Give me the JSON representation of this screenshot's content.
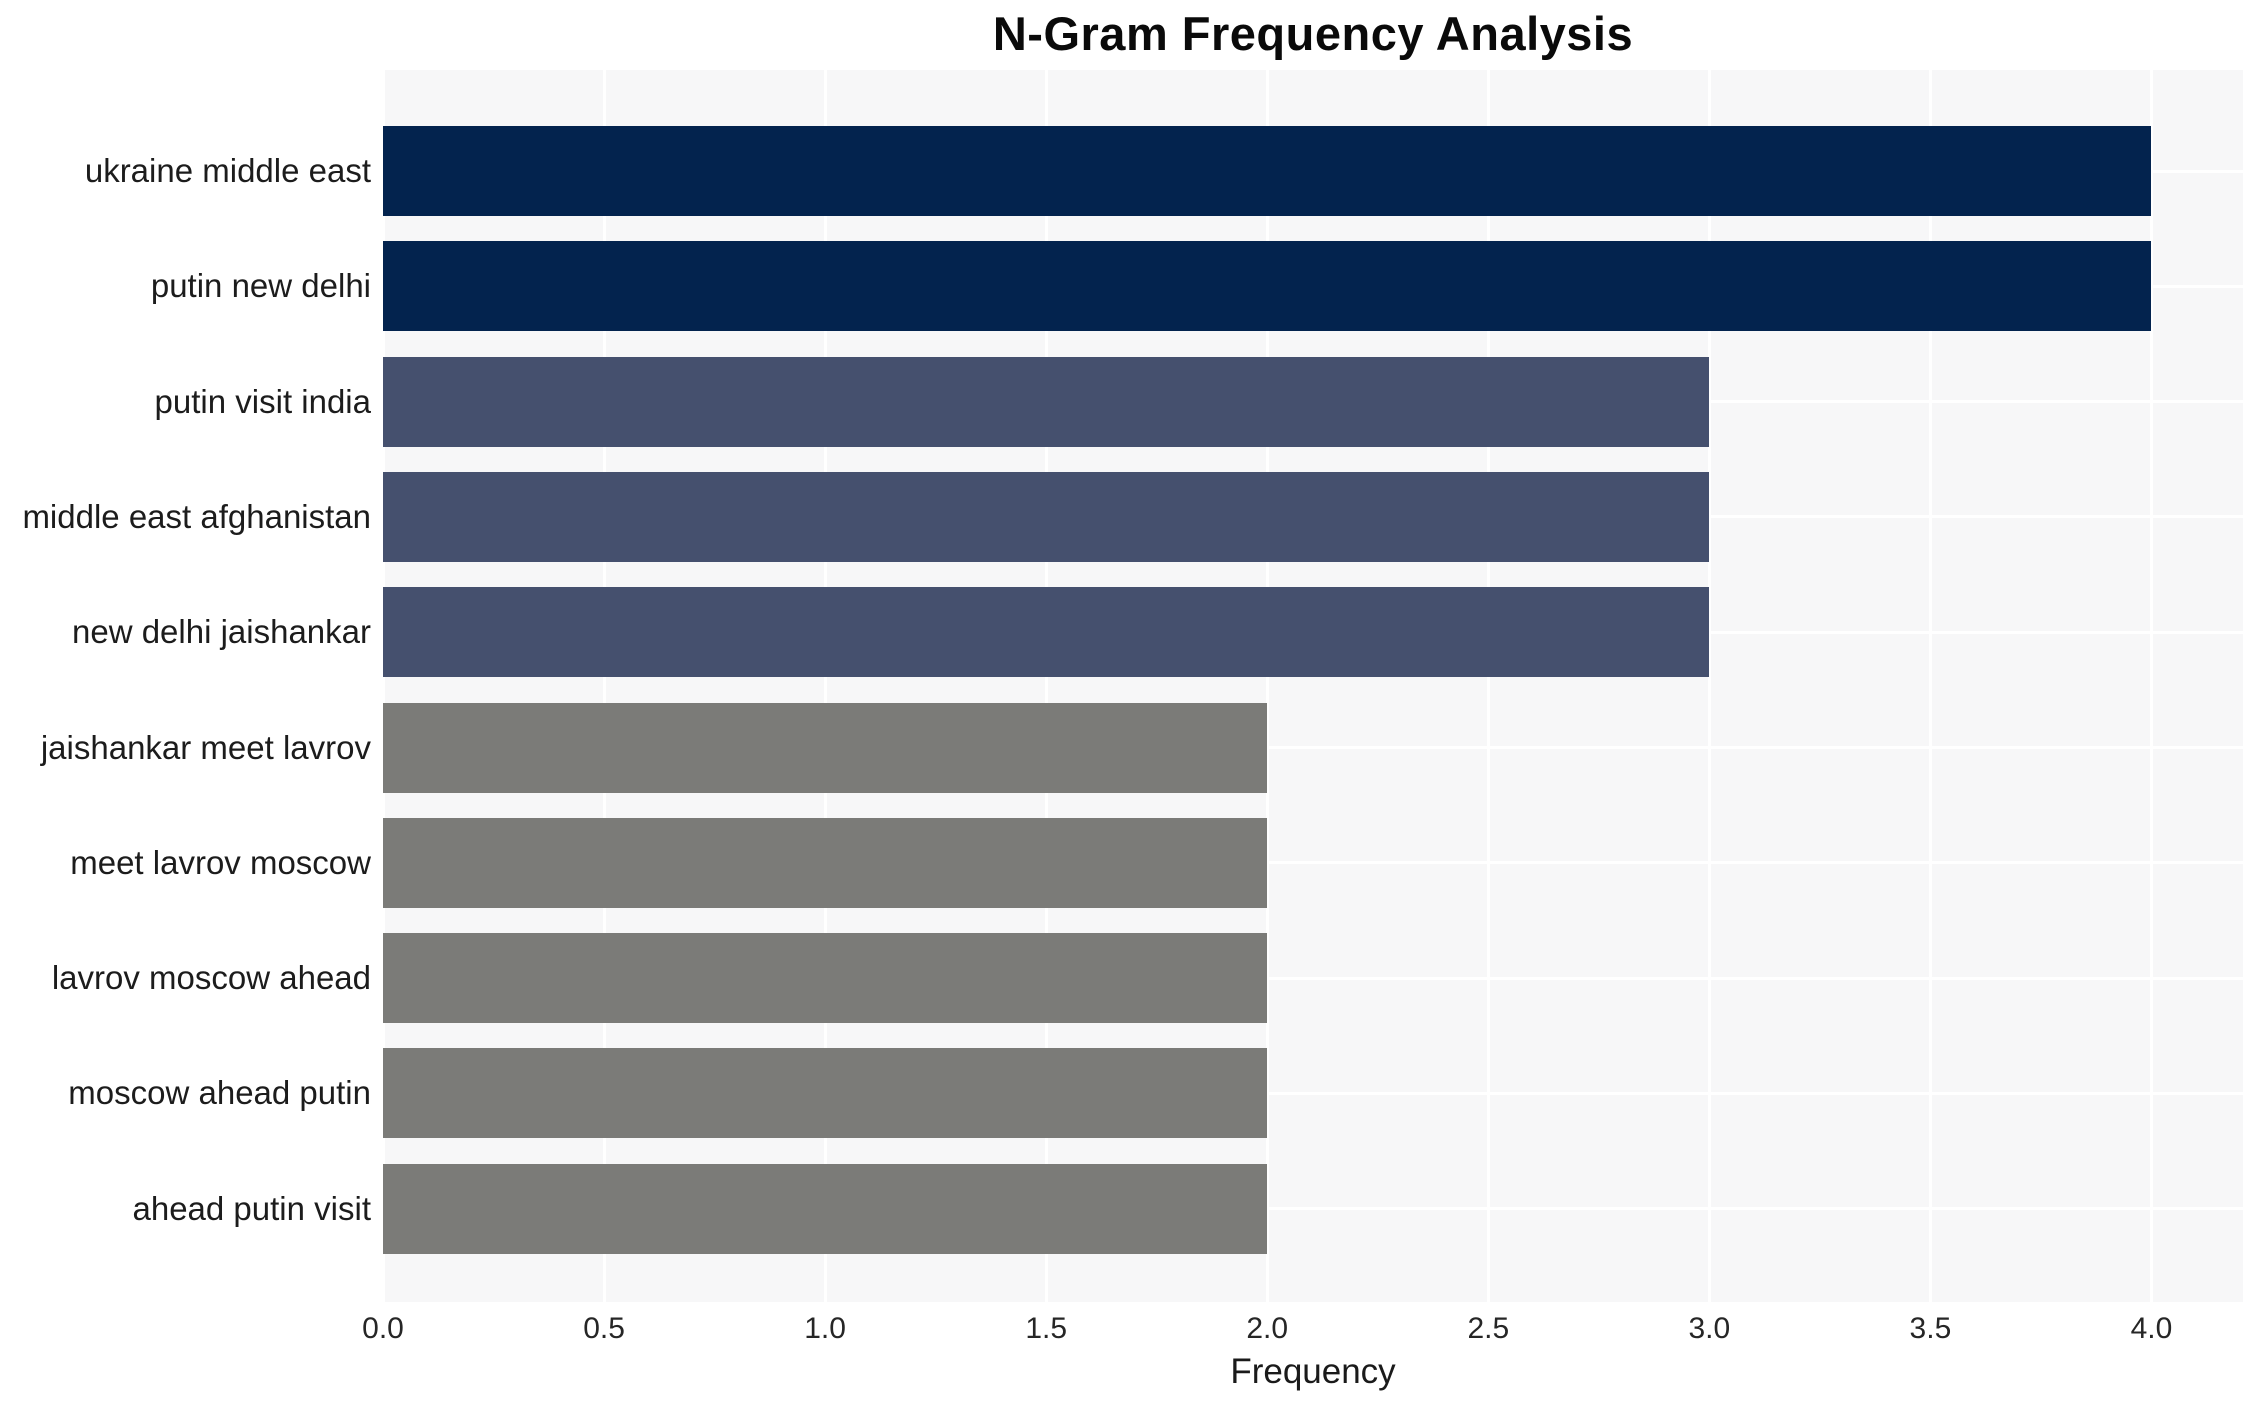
{
  "chart_data": {
    "type": "bar",
    "orientation": "horizontal",
    "title": "N-Gram Frequency Analysis",
    "xlabel": "Frequency",
    "ylabel": "",
    "categories": [
      "ukraine middle east",
      "putin new delhi",
      "putin visit india",
      "middle east afghanistan",
      "new delhi jaishankar",
      "jaishankar meet lavrov",
      "meet lavrov moscow",
      "lavrov moscow ahead",
      "moscow ahead putin",
      "ahead putin visit"
    ],
    "values": [
      4,
      4,
      3,
      3,
      3,
      2,
      2,
      2,
      2,
      2
    ],
    "bar_colors": [
      "#03234e",
      "#03234e",
      "#45506e",
      "#45506e",
      "#45506e",
      "#7b7b78",
      "#7b7b78",
      "#7b7b78",
      "#7b7b78",
      "#7b7b78"
    ],
    "xlim": [
      0,
      4.207
    ],
    "xticks": [
      "0.0",
      "0.5",
      "1.0",
      "1.5",
      "2.0",
      "2.5",
      "3.0",
      "3.5",
      "4.0"
    ],
    "xtick_values": [
      0,
      0.5,
      1,
      1.5,
      2,
      2.5,
      3,
      3.5,
      4
    ],
    "grid": true,
    "legend": "none",
    "colors": {
      "plot_background": "#f7f7f8",
      "figure_background": "#ffffff",
      "gridline": "#ffffff",
      "title_text": "#0a0a0a",
      "tick_text": "#262626",
      "category_text": "#1c1c1c"
    }
  }
}
